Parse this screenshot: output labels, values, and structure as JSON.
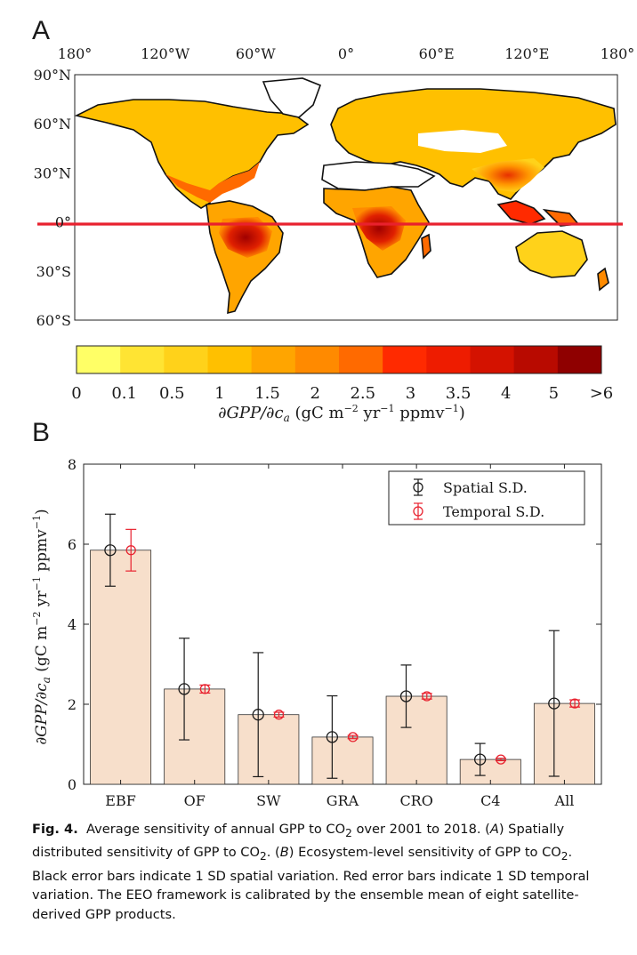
{
  "figure": {
    "panel_a": "A",
    "panel_b": "B",
    "map": {
      "lon_ticks": [
        "180°",
        "120°W",
        "60°W",
        "0°",
        "60°E",
        "120°E",
        "180°"
      ],
      "lat_ticks": [
        "90°N",
        "60°N",
        "30°N",
        "0°",
        "30°S",
        "60°S"
      ],
      "equator_line_color": "#e8212e"
    },
    "colorbar": {
      "tick_labels": [
        "0",
        "0.1",
        "0.5",
        "1",
        "1.5",
        "2",
        "2.5",
        "3",
        "3.5",
        "4",
        "5",
        ">6"
      ],
      "colors": [
        "#ffff66",
        "#ffe433",
        "#ffd21a",
        "#ffc000",
        "#ffa500",
        "#ff8a00",
        "#ff6a00",
        "#ff2a00",
        "#ee1c00",
        "#d41200",
        "#b80a00",
        "#8f0000"
      ],
      "label": "∂GPP/∂c_a (gC m^−2 yr^−1 ppmv^−1)"
    }
  },
  "chart_data": {
    "type": "bar",
    "categories": [
      "EBF",
      "OF",
      "SW",
      "GRA",
      "CRO",
      "C4",
      "All"
    ],
    "values": [
      5.85,
      2.38,
      1.74,
      1.18,
      2.2,
      0.62,
      2.02
    ],
    "spatial_sd": [
      0.9,
      1.27,
      1.55,
      1.03,
      0.78,
      0.4,
      1.82
    ],
    "temporal_sd": [
      0.52,
      0.1,
      0.06,
      0.04,
      0.07,
      0.03,
      0.09
    ],
    "ylim": [
      0,
      8
    ],
    "yticks": [
      "0",
      "2",
      "4",
      "6",
      "8"
    ],
    "ylabel": "∂GPP/∂c_a (gC m^−2 yr^−1 ppmv^−1)",
    "legend": [
      "Spatial S.D.",
      "Temporal S.D."
    ],
    "legend_position": "top-right",
    "bar_color": "#f7dfcb",
    "spatial_color": "#1a1a1a",
    "temporal_color": "#e8212e"
  },
  "caption": {
    "label": "Fig. 4.",
    "text1": "Average sensitivity of annual GPP to CO",
    "sub1": "2",
    "text2": " over 2001 to 2018. (",
    "A": "A",
    "text3": ") Spatially distributed sensitivity of GPP to CO",
    "sub2": "2",
    "text4": ". (",
    "B": "B",
    "text5": ") Ecosystem-level sensitivity of GPP to CO",
    "sub3": "2",
    "text6": ". Black error bars indicate 1 SD spatial variation. Red error bars indicate 1 SD temporal variation. The EEO framework is calibrated by the ensemble mean of eight satellite-derived GPP products."
  }
}
